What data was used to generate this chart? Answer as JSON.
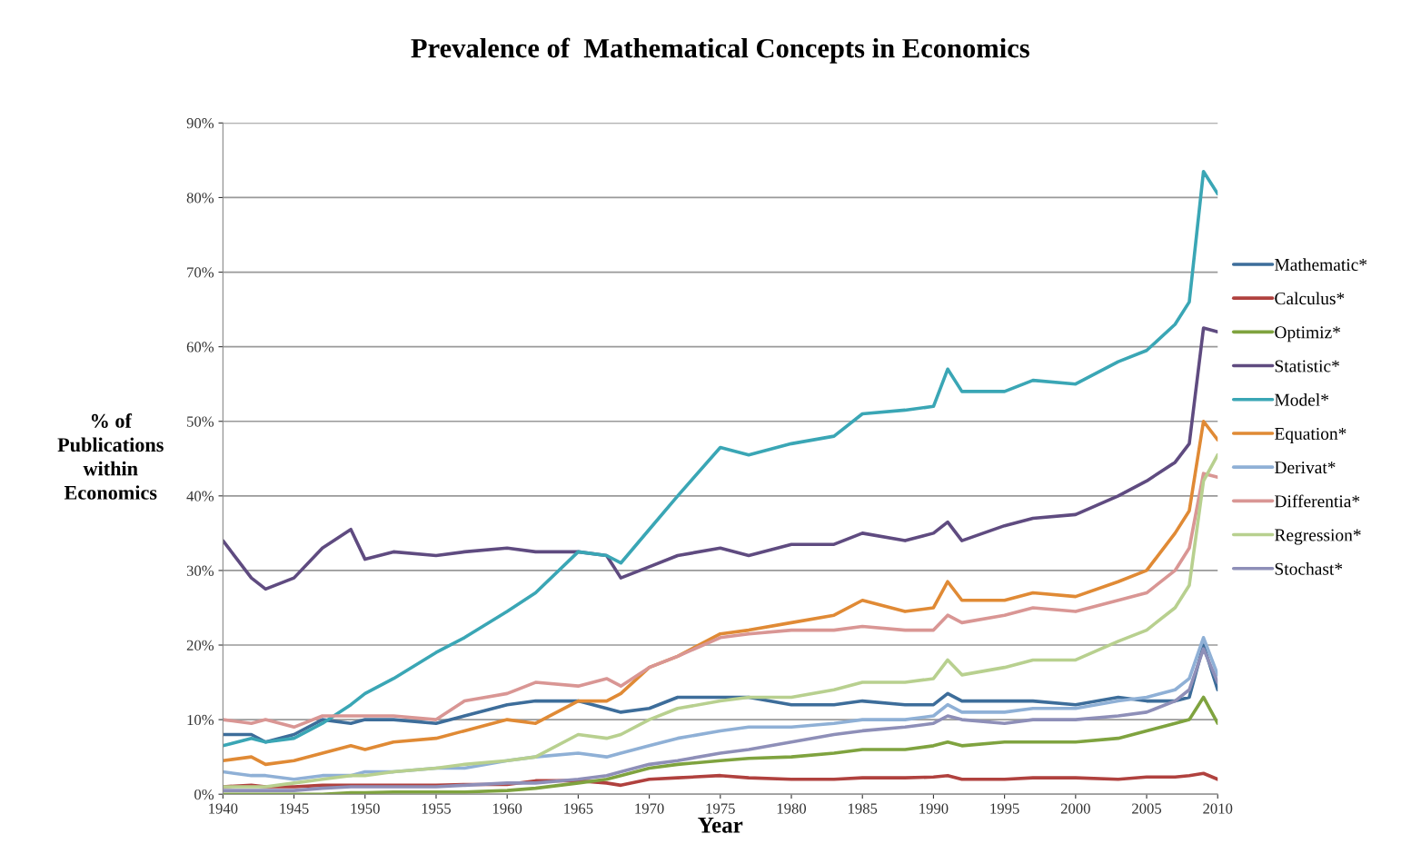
{
  "chart_data": {
    "type": "line",
    "title": "Prevalence of  Mathematical Concepts in Economics",
    "xlabel": "Year",
    "ylabel": "% of\nPublications\nwithin\nEconomics",
    "x": [
      1940,
      1942,
      1943,
      1945,
      1947,
      1949,
      1950,
      1952,
      1955,
      1957,
      1960,
      1962,
      1965,
      1967,
      1968,
      1970,
      1972,
      1975,
      1977,
      1980,
      1983,
      1985,
      1988,
      1990,
      1991,
      1992,
      1995,
      1997,
      2000,
      2003,
      2005,
      2007,
      2008,
      2009,
      2010
    ],
    "series": [
      {
        "name": "Mathematic*",
        "color": "#3d6d9a",
        "values": [
          8,
          8,
          7,
          8,
          10,
          9.5,
          10,
          10,
          9.5,
          10.5,
          12,
          12.5,
          12.5,
          11.5,
          11,
          11.5,
          13,
          13,
          13,
          12,
          12,
          12.5,
          12,
          12,
          13.5,
          12.5,
          12.5,
          12.5,
          12,
          13,
          12.5,
          12.5,
          13,
          20,
          14
        ]
      },
      {
        "name": "Calculus*",
        "color": "#b0413e",
        "values": [
          1,
          1.2,
          1,
          1,
          1.2,
          1.2,
          1.2,
          1.2,
          1.2,
          1.3,
          1.3,
          1.8,
          1.8,
          1.5,
          1.2,
          2,
          2.2,
          2.5,
          2.2,
          2,
          2,
          2.2,
          2.2,
          2.3,
          2.5,
          2,
          2,
          2.2,
          2.2,
          2,
          2.3,
          2.3,
          2.5,
          2.8,
          2
        ]
      },
      {
        "name": "Optimiz*",
        "color": "#7fa33f",
        "values": [
          0,
          0,
          0,
          0,
          0,
          0.2,
          0.2,
          0.3,
          0.3,
          0.3,
          0.5,
          0.8,
          1.5,
          2,
          2.5,
          3.5,
          4,
          4.5,
          4.8,
          5,
          5.5,
          6,
          6,
          6.5,
          7,
          6.5,
          7,
          7,
          7,
          7.5,
          8.5,
          9.5,
          10,
          13,
          9.5
        ]
      },
      {
        "name": "Statistic*",
        "color": "#5f4b80",
        "values": [
          34,
          29,
          27.5,
          29,
          33,
          35.5,
          31.5,
          32.5,
          32,
          32.5,
          33,
          32.5,
          32.5,
          32,
          29,
          30.5,
          32,
          33,
          32,
          33.5,
          33.5,
          35,
          34,
          35,
          36.5,
          34,
          36,
          37,
          37.5,
          40,
          42,
          44.5,
          47,
          62.5,
          62
        ]
      },
      {
        "name": "Model*",
        "color": "#3aa6b5",
        "values": [
          6.5,
          7.5,
          7,
          7.5,
          9.5,
          12,
          13.5,
          15.5,
          19,
          21,
          24.5,
          27,
          32.5,
          32,
          31,
          35.5,
          40,
          46.5,
          45.5,
          47,
          48,
          51,
          51.5,
          52,
          57,
          54,
          54,
          55.5,
          55,
          58,
          59.5,
          63,
          66,
          83.5,
          80.5
        ]
      },
      {
        "name": "Equation*",
        "color": "#e08a35",
        "values": [
          4.5,
          5,
          4,
          4.5,
          5.5,
          6.5,
          6,
          7,
          7.5,
          8.5,
          10,
          9.5,
          12.5,
          12.5,
          13.5,
          17,
          18.5,
          21.5,
          22,
          23,
          24,
          26,
          24.5,
          25,
          28.5,
          26,
          26,
          27,
          26.5,
          28.5,
          30,
          35,
          38,
          50,
          47.5
        ]
      },
      {
        "name": "Derivat*",
        "color": "#8fb0d6",
        "values": [
          3,
          2.5,
          2.5,
          2,
          2.5,
          2.5,
          3,
          3,
          3.5,
          3.5,
          4.5,
          5,
          5.5,
          5,
          5.5,
          6.5,
          7.5,
          8.5,
          9,
          9,
          9.5,
          10,
          10,
          10.5,
          12,
          11,
          11,
          11.5,
          11.5,
          12.5,
          13,
          14,
          15.5,
          21,
          16
        ]
      },
      {
        "name": "Differentia*",
        "color": "#d99694",
        "values": [
          10,
          9.5,
          10,
          9,
          10.5,
          10.5,
          10.5,
          10.5,
          10,
          12.5,
          13.5,
          15,
          14.5,
          15.5,
          14.5,
          17,
          18.5,
          21,
          21.5,
          22,
          22,
          22.5,
          22,
          22,
          24,
          23,
          24,
          25,
          24.5,
          26,
          27,
          30,
          33,
          43,
          42.5
        ]
      },
      {
        "name": "Regression*",
        "color": "#b8d08f",
        "values": [
          1,
          1,
          1,
          1.5,
          2,
          2.5,
          2.5,
          3,
          3.5,
          4,
          4.5,
          5,
          8,
          7.5,
          8,
          10,
          11.5,
          12.5,
          13,
          13,
          14,
          15,
          15,
          15.5,
          18,
          16,
          17,
          18,
          18,
          20.5,
          22,
          25,
          28,
          42,
          45.5
        ]
      },
      {
        "name": "Stochast*",
        "color": "#8e8fb8",
        "values": [
          0.5,
          0.5,
          0.5,
          0.5,
          0.8,
          1,
          1,
          1,
          1,
          1.2,
          1.5,
          1.5,
          2,
          2.5,
          3,
          4,
          4.5,
          5.5,
          6,
          7,
          8,
          8.5,
          9,
          9.5,
          10.5,
          10,
          9.5,
          10,
          10,
          10.5,
          11,
          12.5,
          14,
          19.5,
          15
        ]
      }
    ],
    "xlim": [
      1940,
      2010
    ],
    "xticks": [
      1940,
      1945,
      1950,
      1955,
      1960,
      1965,
      1970,
      1975,
      1980,
      1985,
      1990,
      1995,
      2000,
      2005,
      2010
    ],
    "ylim": [
      0,
      90
    ],
    "yticks": [
      {
        "value": 0,
        "label": "0%"
      },
      {
        "value": 10,
        "label": "10%"
      },
      {
        "value": 20,
        "label": "20%"
      },
      {
        "value": 30,
        "label": "30%"
      },
      {
        "value": 40,
        "label": "40%"
      },
      {
        "value": 50,
        "label": "50%"
      },
      {
        "value": 60,
        "label": "60%"
      },
      {
        "value": 70,
        "label": "70%"
      },
      {
        "value": 80,
        "label": "80%"
      },
      {
        "value": 90,
        "label": "90%"
      }
    ],
    "grid": "y",
    "legend": "right",
    "line_style": "solid"
  }
}
